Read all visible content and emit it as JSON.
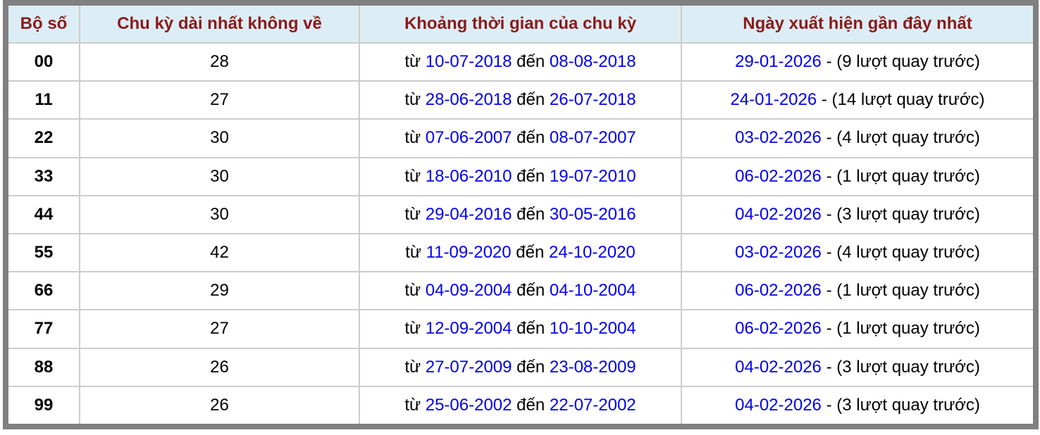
{
  "colors": {
    "header_bg": "#ddedf6",
    "header_text": "#8b1a1a",
    "date_link": "#0000ee",
    "frame": "#808080"
  },
  "header": {
    "col1": "Bộ số",
    "col2": "Chu kỳ dài nhất không về",
    "col3": "Khoảng thời gian của chu kỳ",
    "col4": "Ngày xuất hiện gần đây nhất"
  },
  "labels": {
    "from": "từ",
    "to": "đến"
  },
  "rows": [
    {
      "number": "00",
      "cycle": "28",
      "from": "10-07-2018",
      "to": "08-08-2018",
      "last": "29-01-2026",
      "last_note": "- (9 lượt quay trước)"
    },
    {
      "number": "11",
      "cycle": "27",
      "from": "28-06-2018",
      "to": "26-07-2018",
      "last": "24-01-2026",
      "last_note": "- (14 lượt quay trước)"
    },
    {
      "number": "22",
      "cycle": "30",
      "from": "07-06-2007",
      "to": "08-07-2007",
      "last": "03-02-2026",
      "last_note": "- (4 lượt quay trước)"
    },
    {
      "number": "33",
      "cycle": "30",
      "from": "18-06-2010",
      "to": "19-07-2010",
      "last": "06-02-2026",
      "last_note": "- (1 lượt quay trước)"
    },
    {
      "number": "44",
      "cycle": "30",
      "from": "29-04-2016",
      "to": "30-05-2016",
      "last": "04-02-2026",
      "last_note": "- (3 lượt quay trước)"
    },
    {
      "number": "55",
      "cycle": "42",
      "from": "11-09-2020",
      "to": "24-10-2020",
      "last": "03-02-2026",
      "last_note": "- (4 lượt quay trước)"
    },
    {
      "number": "66",
      "cycle": "29",
      "from": "04-09-2004",
      "to": "04-10-2004",
      "last": "06-02-2026",
      "last_note": "- (1 lượt quay trước)"
    },
    {
      "number": "77",
      "cycle": "27",
      "from": "12-09-2004",
      "to": "10-10-2004",
      "last": "06-02-2026",
      "last_note": "- (1 lượt quay trước)"
    },
    {
      "number": "88",
      "cycle": "26",
      "from": "27-07-2009",
      "to": "23-08-2009",
      "last": "04-02-2026",
      "last_note": "- (3 lượt quay trước)"
    },
    {
      "number": "99",
      "cycle": "26",
      "from": "25-06-2002",
      "to": "22-07-2002",
      "last": "04-02-2026",
      "last_note": "- (3 lượt quay trước)"
    }
  ]
}
